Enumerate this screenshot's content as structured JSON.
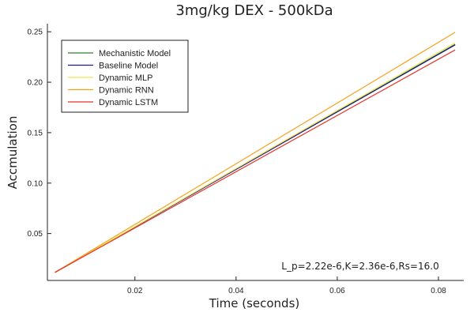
{
  "chart_data": {
    "type": "line",
    "title": "3mg/kg DEX - 500kDa",
    "xlabel": "Time (seconds)",
    "ylabel": "Accmulation",
    "xlim": [
      0.0027,
      0.085
    ],
    "ylim": [
      0.0035,
      0.258
    ],
    "xticks": [
      0.02,
      0.04,
      0.06,
      0.08
    ],
    "xtick_labels": [
      "0.02",
      "0.04",
      "0.06",
      "0.08"
    ],
    "yticks": [
      0.05,
      0.1,
      0.15,
      0.2,
      0.25
    ],
    "ytick_labels": [
      "0.05",
      "0.10",
      "0.15",
      "0.20",
      "0.25"
    ],
    "grid": false,
    "legend_position": "top-left",
    "annotation": "L_p=2.22e-6,K=2.36e-6,Rs=16.0",
    "series": [
      {
        "name": "Mechanistic Model",
        "color": "#2e7d32",
        "x": [
          0.0042,
          0.0833
        ],
        "y": [
          0.0115,
          0.2375
        ]
      },
      {
        "name": "Baseline Model",
        "color": "#1a1a8c",
        "x": [
          0.0042,
          0.0833
        ],
        "y": [
          0.0115,
          0.237
        ]
      },
      {
        "name": "Dynamic MLP",
        "color": "#f2e34c",
        "x": [
          0.0042,
          0.0833
        ],
        "y": [
          0.0115,
          0.239
        ]
      },
      {
        "name": "Dynamic RNN",
        "color": "#f7a21b",
        "x": [
          0.0042,
          0.0833
        ],
        "y": [
          0.0115,
          0.2495
        ]
      },
      {
        "name": "Dynamic LSTM",
        "color": "#e8332a",
        "x": [
          0.0042,
          0.0833
        ],
        "y": [
          0.0115,
          0.232
        ]
      }
    ]
  }
}
